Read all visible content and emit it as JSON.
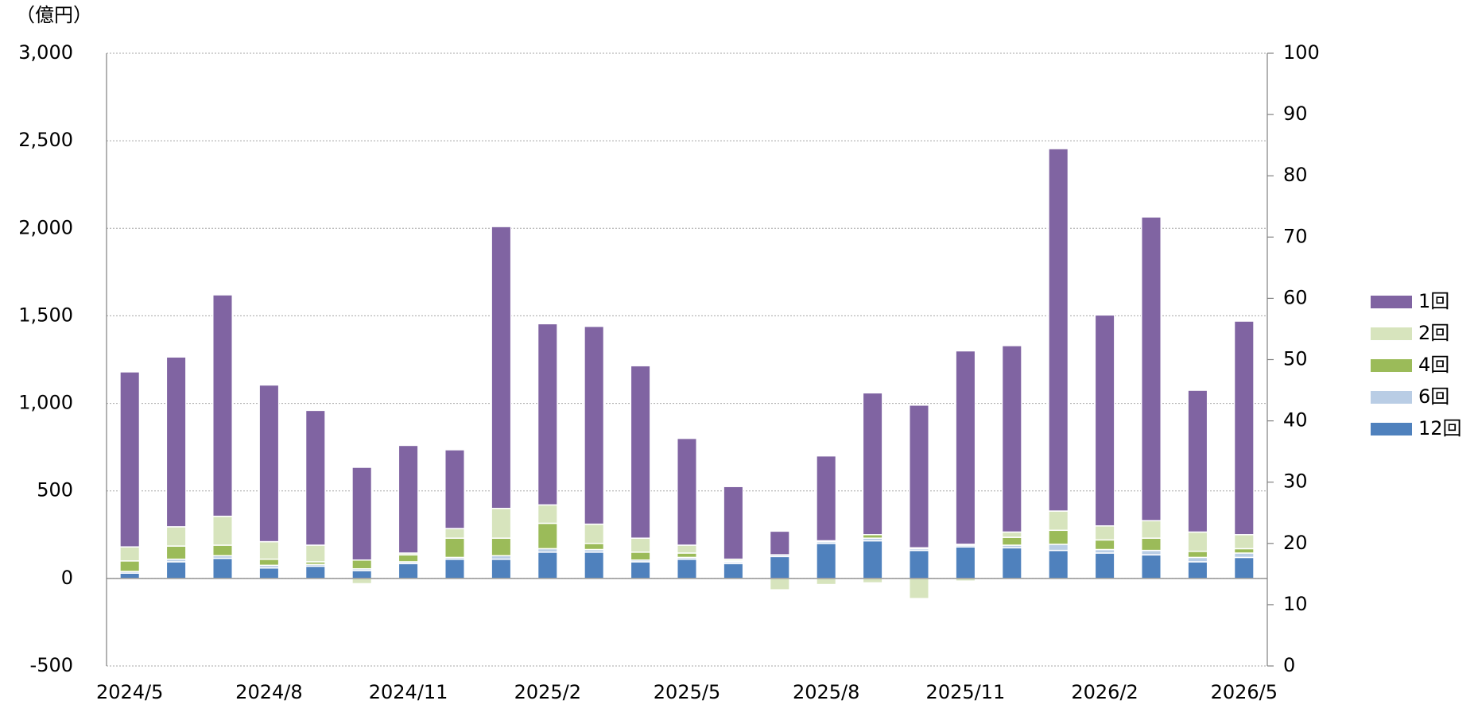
{
  "chart_data": {
    "type": "bar",
    "stacked": true,
    "unit_label": "（億円）",
    "categories": [
      "2024/5",
      null,
      null,
      "2024/8",
      null,
      null,
      "2024/11",
      null,
      null,
      "2025/2",
      null,
      null,
      "2025/5",
      null,
      null,
      "2025/8",
      null,
      null,
      "2025/11",
      null,
      null,
      "2026/2",
      null,
      null,
      "2026/5"
    ],
    "series": [
      {
        "name": "12回",
        "color": "#4f81bd",
        "values": [
          30,
          95,
          115,
          60,
          70,
          45,
          85,
          110,
          110,
          150,
          150,
          95,
          110,
          85,
          125,
          200,
          215,
          160,
          180,
          175,
          160,
          145,
          135,
          95,
          120
        ]
      },
      {
        "name": "6回",
        "color": "#b9cde5",
        "values": [
          10,
          15,
          15,
          15,
          10,
          10,
          10,
          10,
          20,
          20,
          15,
          10,
          10,
          10,
          10,
          10,
          15,
          10,
          10,
          15,
          35,
          20,
          25,
          25,
          25
        ]
      },
      {
        "name": "4回",
        "color": "#9bbb59",
        "values": [
          60,
          75,
          60,
          35,
          15,
          50,
          40,
          110,
          100,
          145,
          35,
          45,
          25,
          5,
          0,
          5,
          20,
          5,
          5,
          45,
          80,
          55,
          70,
          35,
          25
        ]
      },
      {
        "name": "2回",
        "color": "#d7e4bd",
        "values": [
          80,
          110,
          165,
          100,
          95,
          -30,
          10,
          55,
          170,
          105,
          110,
          80,
          45,
          10,
          -65,
          -35,
          -25,
          -115,
          -15,
          30,
          110,
          80,
          100,
          110,
          80
        ]
      },
      {
        "name": "1回",
        "color": "#8064a2",
        "values": [
          1000,
          970,
          1265,
          895,
          770,
          530,
          615,
          450,
          1610,
          1035,
          1130,
          985,
          610,
          415,
          135,
          485,
          810,
          815,
          1105,
          1065,
          2070,
          1205,
          1735,
          810,
          1220
        ]
      }
    ],
    "ylim": [
      -500,
      3000
    ],
    "yticks": [
      {
        "value": -500,
        "label": "-500"
      },
      0,
      500,
      {
        "value": 1000,
        "label": "1,000"
      },
      {
        "value": 1500,
        "label": "1,500"
      },
      {
        "value": 2000,
        "label": "2,000"
      },
      {
        "value": 2500,
        "label": "2,500"
      },
      {
        "value": 3000,
        "label": "3,000"
      }
    ],
    "y2lim": [
      0,
      100
    ],
    "y2ticks": [
      0,
      10,
      20,
      30,
      40,
      50,
      60,
      70,
      80,
      90,
      100
    ],
    "grid": true,
    "legend": "right"
  }
}
